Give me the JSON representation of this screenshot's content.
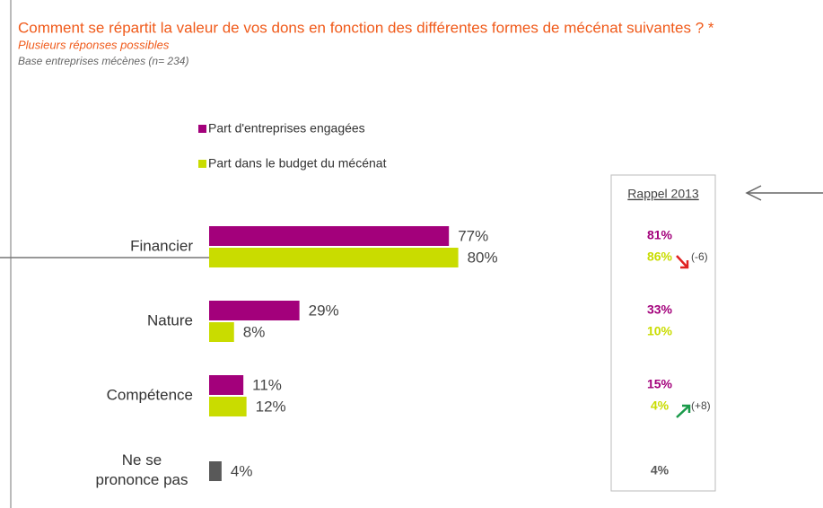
{
  "chart_data": {
    "type": "hbar",
    "title": "Comment se répartit la valeur de vos dons en fonction des différentes formes de mécénat suivantes ? *",
    "subtitle": "Plusieurs réponses possibles",
    "note": "Base entreprises mécènes (n= 234)",
    "categories": [
      "Financier",
      "Nature",
      "Compétence",
      "Ne se prononce pas"
    ],
    "xlim": [
      0,
      100
    ],
    "series": [
      {
        "name": "Part d'entreprises engagées",
        "color": "#a3007b",
        "point_colors": [
          "#a3007b",
          "#a3007b",
          "#a3007b",
          "#595959"
        ],
        "values": [
          77,
          29,
          11,
          4
        ],
        "value_labels": [
          "77%",
          "29%",
          "11%",
          "4%"
        ]
      },
      {
        "name": "Part dans le budget du mécénat",
        "color": "#c9dc00",
        "values": [
          80,
          8,
          12,
          null
        ],
        "value_labels": [
          "80%",
          "8%",
          "12%",
          null
        ]
      }
    ],
    "recall": {
      "title": "Rappel 2013",
      "first": [
        "81%",
        "33%",
        "15%",
        "4%"
      ],
      "second": [
        "86%",
        "10%",
        "4%",
        null
      ],
      "changes": [
        "(-6)",
        null,
        "(+8)",
        null
      ]
    }
  }
}
